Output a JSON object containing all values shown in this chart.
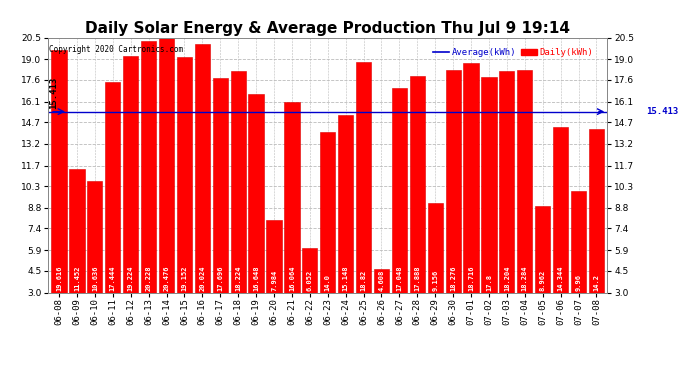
{
  "title": "Daily Solar Energy & Average Production Thu Jul 9 19:14",
  "copyright": "Copyright 2020 Cartronics.com",
  "categories": [
    "06-08",
    "06-09",
    "06-10",
    "06-11",
    "06-12",
    "06-13",
    "06-14",
    "06-15",
    "06-16",
    "06-17",
    "06-18",
    "06-19",
    "06-20",
    "06-21",
    "06-22",
    "06-23",
    "06-24",
    "06-25",
    "06-26",
    "06-27",
    "06-28",
    "06-29",
    "06-30",
    "07-01",
    "07-02",
    "07-03",
    "07-04",
    "07-05",
    "07-06",
    "07-07",
    "07-08"
  ],
  "values": [
    19.616,
    11.452,
    10.636,
    17.444,
    19.224,
    20.228,
    20.476,
    19.152,
    20.024,
    17.696,
    18.224,
    16.648,
    7.984,
    16.064,
    6.052,
    14.0,
    15.148,
    18.82,
    4.608,
    17.048,
    17.888,
    9.156,
    18.276,
    18.716,
    17.8,
    18.204,
    18.284,
    8.962,
    14.344,
    9.96,
    14.2
  ],
  "average": 15.413,
  "bar_color": "#ff0000",
  "bar_edge_color": "#dd0000",
  "average_line_color": "#0000cc",
  "background_color": "#ffffff",
  "plot_bg_color": "#ffffff",
  "grid_color": "#bbbbbb",
  "ylim_min": 3.0,
  "ylim_max": 20.5,
  "yticks": [
    3.0,
    4.5,
    5.9,
    7.4,
    8.8,
    10.3,
    11.7,
    13.2,
    14.7,
    16.1,
    17.6,
    19.0,
    20.5
  ],
  "title_fontsize": 11,
  "bar_value_fontsize": 5.0,
  "tick_fontsize": 6.5,
  "avg_label": "15.413",
  "legend_avg_label": "Average(kWh)",
  "legend_daily_label": "Daily(kWh)",
  "legend_avg_color": "#0000cc",
  "legend_daily_color": "#ff0000"
}
